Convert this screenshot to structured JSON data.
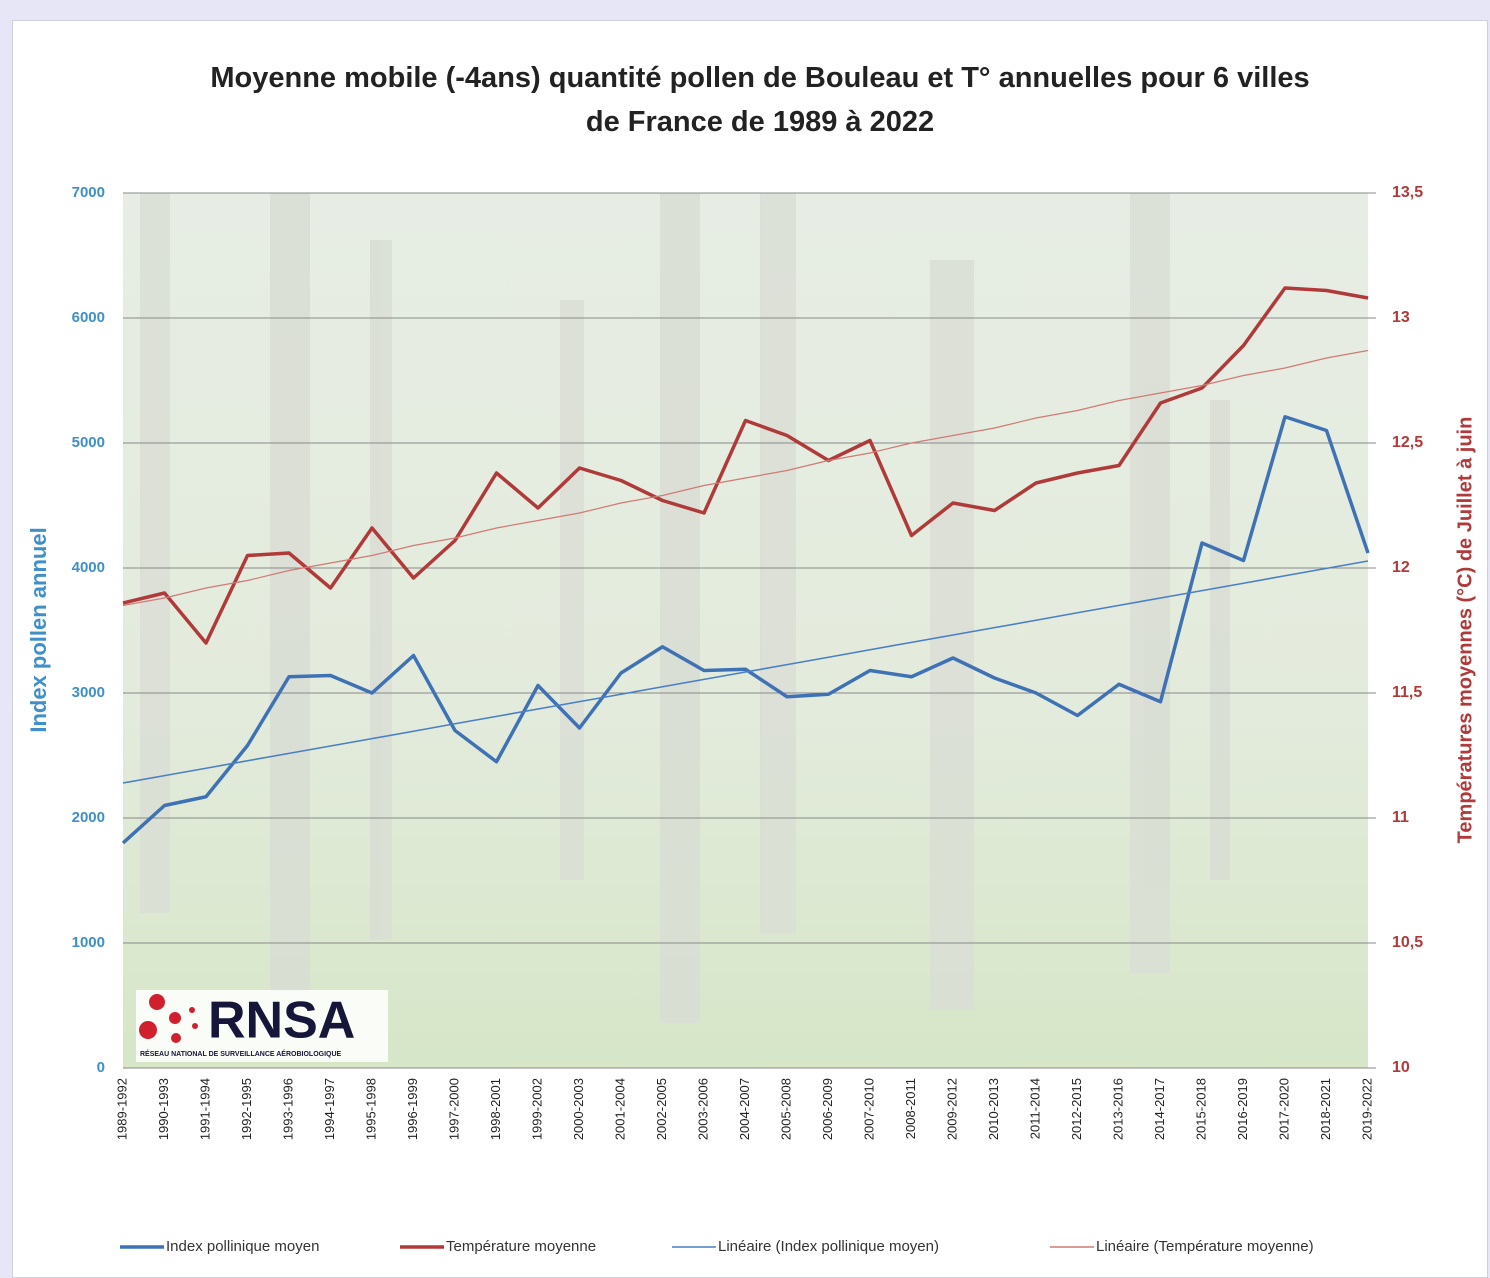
{
  "chart_data": {
    "type": "line",
    "title": "Moyenne mobile (-4ans) quantité pollen de Bouleau et T° annuelles pour 6 villes de France de 1989 à 2022",
    "y_label": "Index pollen annuel",
    "y2_label": "Températures moyennes (°C) de Juillet à juin",
    "annotations": [
      "RNSA",
      "RÉSEAU NATIONAL DE SURVEILLANCE AÉROBIOLOGIQUE"
    ],
    "categories": [
      "1989-1992",
      "1990-1993",
      "1991-1994",
      "1992-1995",
      "1993-1996",
      "1994-1997",
      "1995-1998",
      "1996-1999",
      "1997-2000",
      "1998-2001",
      "1999-2002",
      "2000-2003",
      "2001-2004",
      "2002-2005",
      "2003-2006",
      "2004-2007",
      "2005-2008",
      "2006-2009",
      "2007-2010",
      "2008-2011",
      "2009-2012",
      "2010-2013",
      "2011-2014",
      "2012-2015",
      "2013-2016",
      "2014-2017",
      "2015-2018",
      "2016-2019",
      "2017-2020",
      "2018-2021",
      "2019-2022"
    ],
    "series": [
      {
        "name": "Index pollinique moyen",
        "color": "#3f72b5",
        "linewidth": 3.5,
        "axis": "y",
        "values": [
          1800,
          2100,
          2170,
          2580,
          3130,
          3140,
          3000,
          3300,
          2700,
          2450,
          3060,
          2720,
          3160,
          3370,
          3180,
          3190,
          2970,
          2990,
          3180,
          3130,
          3280,
          3120,
          3000,
          2820,
          3070,
          2930,
          4200,
          4060,
          5210,
          5100,
          4120
        ]
      },
      {
        "name": "Température moyenne",
        "color": "#b03a3a",
        "linewidth": 3.5,
        "axis": "y2",
        "values": [
          11.86,
          11.9,
          11.7,
          12.05,
          12.06,
          11.92,
          12.16,
          11.96,
          12.11,
          12.38,
          12.24,
          12.4,
          12.35,
          12.27,
          12.22,
          12.59,
          12.53,
          12.43,
          12.51,
          12.13,
          12.26,
          12.23,
          12.34,
          12.38,
          12.41,
          12.66,
          12.72,
          12.89,
          13.12,
          13.11,
          13.08
        ]
      },
      {
        "name": "Linéaire (Index pollinique moyen)",
        "color": "#4a7fc4",
        "linewidth": 1.6,
        "axis": "y",
        "values": [
          2280,
          2339,
          2398,
          2458,
          2517,
          2576,
          2635,
          2694,
          2754,
          2813,
          2872,
          2931,
          2990,
          3050,
          3109,
          3168,
          3227,
          3286,
          3346,
          3405,
          3464,
          3523,
          3582,
          3642,
          3701,
          3760,
          3819,
          3878,
          3938,
          3997,
          4056
        ]
      },
      {
        "name": "Linéaire (Température moyenne)",
        "color": "#d07a74",
        "linewidth": 1.2,
        "axis": "y2",
        "values": [
          11.85,
          11.88,
          11.92,
          11.95,
          11.99,
          12.02,
          12.05,
          12.09,
          12.12,
          12.16,
          12.19,
          12.22,
          12.26,
          12.29,
          12.33,
          12.36,
          12.39,
          12.43,
          12.46,
          12.5,
          12.53,
          12.56,
          12.6,
          12.63,
          12.67,
          12.7,
          12.73,
          12.77,
          12.8,
          12.84,
          12.87
        ]
      }
    ],
    "ylim": [
      0,
      7000
    ],
    "yticks": [
      0,
      1000,
      2000,
      3000,
      4000,
      5000,
      6000,
      7000
    ],
    "y2lim": [
      10,
      13.5
    ],
    "y2ticks": [
      10,
      {
        "value": 10.5,
        "label": "10,5"
      },
      11,
      {
        "value": 11.5,
        "label": "11,5"
      },
      12,
      {
        "value": 12.5,
        "label": "12,5"
      },
      13,
      {
        "value": 13.5,
        "label": "13,5"
      }
    ],
    "grid": true,
    "legend": "bottom"
  }
}
